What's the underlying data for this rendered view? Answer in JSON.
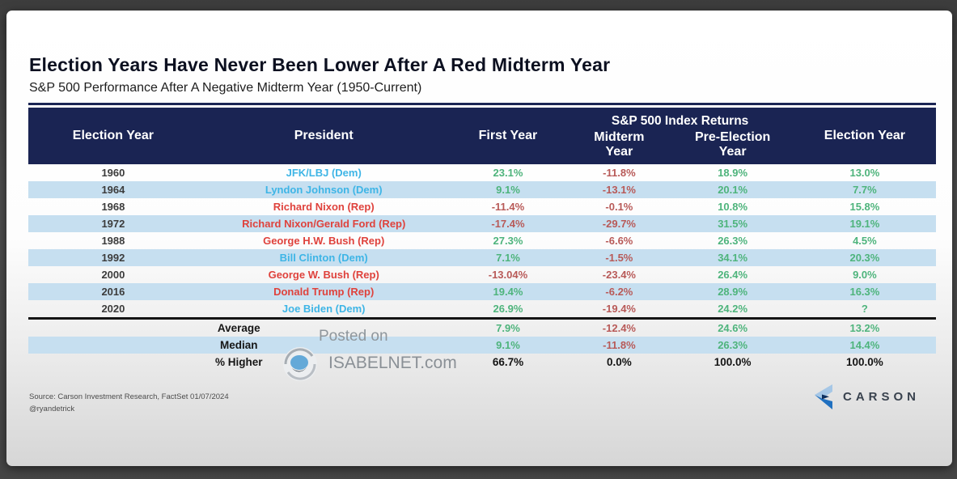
{
  "slide": {
    "title": "Election Years Have Never Been Lower After A Red Midterm Year",
    "subtitle": "S&P 500 Performance After A Negative Midterm Year (1950-Current)"
  },
  "table": {
    "group_header": "S&P 500 Index Returns",
    "columns": [
      "Election Year",
      "President",
      "First Year",
      "Midterm Year",
      "Pre-Election Year",
      "Election Year"
    ],
    "rows": [
      {
        "year": "1960",
        "president": "JFK/LBJ (Dem)",
        "party": "dem",
        "first": "23.1%",
        "midterm": "-11.8%",
        "pre": "18.9%",
        "election": "13.0%"
      },
      {
        "year": "1964",
        "president": "Lyndon Johnson (Dem)",
        "party": "dem",
        "first": "9.1%",
        "midterm": "-13.1%",
        "pre": "20.1%",
        "election": "7.7%"
      },
      {
        "year": "1968",
        "president": "Richard Nixon (Rep)",
        "party": "rep",
        "first": "-11.4%",
        "midterm": "-0.1%",
        "pre": "10.8%",
        "election": "15.8%"
      },
      {
        "year": "1972",
        "president": "Richard Nixon/Gerald Ford (Rep)",
        "party": "rep",
        "first": "-17.4%",
        "midterm": "-29.7%",
        "pre": "31.5%",
        "election": "19.1%"
      },
      {
        "year": "1988",
        "president": "George H.W. Bush (Rep)",
        "party": "rep",
        "first": "27.3%",
        "midterm": "-6.6%",
        "pre": "26.3%",
        "election": "4.5%"
      },
      {
        "year": "1992",
        "president": "Bill Clinton (Dem)",
        "party": "dem",
        "first": "7.1%",
        "midterm": "-1.5%",
        "pre": "34.1%",
        "election": "20.3%"
      },
      {
        "year": "2000",
        "president": "George W. Bush (Rep)",
        "party": "rep",
        "first": "-13.04%",
        "midterm": "-23.4%",
        "pre": "26.4%",
        "election": "9.0%"
      },
      {
        "year": "2016",
        "president": "Donald Trump (Rep)",
        "party": "rep",
        "first": "19.4%",
        "midterm": "-6.2%",
        "pre": "28.9%",
        "election": "16.3%"
      },
      {
        "year": "2020",
        "president": "Joe Biden (Dem)",
        "party": "dem",
        "first": "26.9%",
        "midterm": "-19.4%",
        "pre": "24.2%",
        "election": "?"
      }
    ],
    "summary": [
      {
        "label": "Average",
        "first": "7.9%",
        "midterm": "-12.4%",
        "pre": "24.6%",
        "election": "13.2%",
        "neutral": false
      },
      {
        "label": "Median",
        "first": "9.1%",
        "midterm": "-11.8%",
        "pre": "26.3%",
        "election": "14.4%",
        "neutral": false
      },
      {
        "label": "% Higher",
        "first": "66.7%",
        "midterm": "0.0%",
        "pre": "100.0%",
        "election": "100.0%",
        "neutral": true
      }
    ]
  },
  "watermark": {
    "line1": "Posted on",
    "line2": "ISABELNET.com"
  },
  "footer": {
    "source_line1": "Source: Carson Investment Research, FactSet 01/07/2024",
    "source_line2": "@ryandetrick",
    "brand": "CARSON"
  },
  "colors": {
    "header_bg": "#1a2453",
    "stripe": "#c6dff0",
    "positive": "#4eb47c",
    "negative": "#b85a58",
    "dem": "#3eb5e6",
    "rep": "#df423c",
    "brand_light_blue": "#a6c7e6",
    "brand_blue": "#2070c0",
    "brand_navy": "#0d2f5e"
  },
  "chart_data": {
    "type": "table",
    "title": "Election Years Have Never Been Lower After A Red Midterm Year",
    "subtitle": "S&P 500 Performance After A Negative Midterm Year (1950-Current)",
    "group_header": "S&P 500 Index Returns",
    "columns": [
      "Election Year",
      "President",
      "First Year",
      "Midterm Year",
      "Pre-Election Year",
      "Election Year"
    ],
    "rows": [
      [
        "1960",
        "JFK/LBJ (Dem)",
        23.1,
        -11.8,
        18.9,
        13.0
      ],
      [
        "1964",
        "Lyndon Johnson (Dem)",
        9.1,
        -13.1,
        20.1,
        7.7
      ],
      [
        "1968",
        "Richard Nixon (Rep)",
        -11.4,
        -0.1,
        10.8,
        15.8
      ],
      [
        "1972",
        "Richard Nixon/Gerald Ford (Rep)",
        -17.4,
        -29.7,
        31.5,
        19.1
      ],
      [
        "1988",
        "George H.W. Bush (Rep)",
        27.3,
        -6.6,
        26.3,
        4.5
      ],
      [
        "1992",
        "Bill Clinton (Dem)",
        7.1,
        -1.5,
        34.1,
        20.3
      ],
      [
        "2000",
        "George W. Bush (Rep)",
        -13.04,
        -23.4,
        26.4,
        9.0
      ],
      [
        "2016",
        "Donald Trump (Rep)",
        19.4,
        -6.2,
        28.9,
        16.3
      ],
      [
        "2020",
        "Joe Biden (Dem)",
        26.9,
        -19.4,
        24.2,
        "?"
      ]
    ],
    "summary": [
      [
        "Average",
        7.9,
        -12.4,
        24.6,
        13.2
      ],
      [
        "Median",
        9.1,
        -11.8,
        26.3,
        14.4
      ],
      [
        "% Higher",
        66.7,
        0.0,
        100.0,
        100.0
      ]
    ]
  }
}
